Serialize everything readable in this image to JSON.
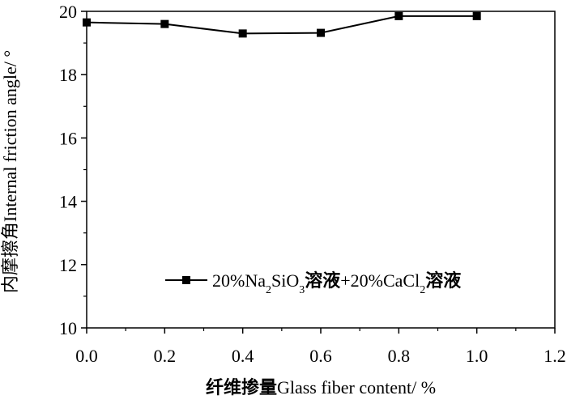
{
  "chart_data": {
    "type": "line",
    "title": "",
    "xlabel_cn": "纤维掺量",
    "xlabel_en": "Glass fiber content/ %",
    "ylabel_cn": "内摩擦角",
    "ylabel_en": "Internal friction angle/ °",
    "xlim": [
      0.0,
      1.2
    ],
    "ylim": [
      10,
      20
    ],
    "xticks": [
      0.0,
      0.2,
      0.4,
      0.6,
      0.8,
      1.0,
      1.2
    ],
    "xtick_labels": [
      "0.0",
      "0.2",
      "0.4",
      "0.6",
      "0.8",
      "1.0",
      "1.2"
    ],
    "yticks": [
      10,
      12,
      14,
      16,
      18,
      20
    ],
    "ytick_labels": [
      "10",
      "12",
      "14",
      "16",
      "18",
      "20"
    ],
    "grid": false,
    "legend_position": "bottom-right",
    "series": [
      {
        "name": "20%Na2SiO3溶液+20%CaCl2溶液",
        "marker": "square",
        "color": "#000000",
        "x": [
          0.0,
          0.2,
          0.4,
          0.6,
          0.8,
          1.0
        ],
        "y": [
          19.65,
          19.6,
          19.3,
          19.32,
          19.85,
          19.85
        ]
      }
    ],
    "legend": {
      "p1": "20%Na",
      "s1": "2",
      "p2": "SiO",
      "s2": "3",
      "p3": "溶液",
      "p4": "+20%CaCl",
      "s3": "2",
      "p5": "溶液"
    }
  }
}
